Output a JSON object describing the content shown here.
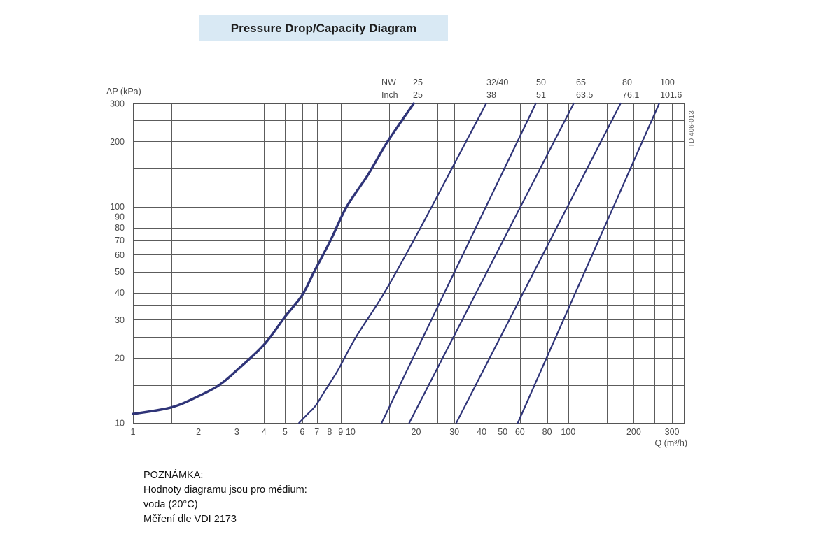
{
  "chart_data": {
    "type": "line",
    "title": "Pressure Drop/Capacity Diagram",
    "xlabel": "Q (m³/h)",
    "ylabel": "ΔP (kPa)",
    "xscale": "log",
    "yscale": "log",
    "xlim": [
      1,
      340
    ],
    "ylim": [
      10,
      300
    ],
    "x_ticks": [
      1,
      2,
      3,
      4,
      5,
      6,
      7,
      8,
      9,
      10,
      20,
      30,
      40,
      50,
      60,
      80,
      100,
      200,
      300
    ],
    "y_ticks": [
      10,
      20,
      30,
      40,
      50,
      60,
      70,
      80,
      90,
      100,
      200,
      300
    ],
    "x_grid": [
      1.5,
      2,
      2.5,
      3,
      4,
      5,
      6,
      7,
      8,
      9,
      10,
      15,
      20,
      25,
      30,
      40,
      50,
      60,
      70,
      80,
      90,
      100,
      150,
      200,
      250,
      300
    ],
    "y_grid": [
      15,
      20,
      25,
      30,
      35,
      40,
      45,
      50,
      60,
      70,
      80,
      90,
      100,
      150,
      200,
      250
    ],
    "grid": true,
    "line_color": "#2f3478",
    "size_labels": {
      "nw": "NW",
      "inch": "Inch"
    },
    "series": [
      {
        "nw": "25",
        "inch": "25",
        "points": [
          [
            1,
            11
          ],
          [
            1.5,
            11.8
          ],
          [
            2,
            13.3
          ],
          [
            2.5,
            15
          ],
          [
            3,
            17.5
          ],
          [
            4,
            23
          ],
          [
            5,
            31
          ],
          [
            6,
            39
          ],
          [
            6.8,
            50
          ],
          [
            8.1,
            70
          ],
          [
            9.6,
            100
          ],
          [
            12,
            140
          ],
          [
            14.8,
            200
          ],
          [
            19.5,
            300
          ]
        ]
      },
      {
        "nw": "32/40",
        "inch": "38",
        "points": [
          [
            5.8,
            10
          ],
          [
            6.3,
            10.9
          ],
          [
            6.9,
            12
          ],
          [
            7.6,
            14
          ],
          [
            8.8,
            17.7
          ],
          [
            10.6,
            25
          ],
          [
            14.3,
            40
          ],
          [
            20.7,
            78
          ],
          [
            30,
            158
          ],
          [
            42,
            300
          ]
        ]
      },
      {
        "nw": "50",
        "inch": "51",
        "points": [
          [
            13.9,
            10
          ],
          [
            71,
            300
          ]
        ]
      },
      {
        "nw": "65",
        "inch": "63.5",
        "points": [
          [
            18.6,
            10
          ],
          [
            106,
            300
          ]
        ]
      },
      {
        "nw": "80",
        "inch": "76.1",
        "points": [
          [
            30.6,
            10
          ],
          [
            174,
            300
          ]
        ]
      },
      {
        "nw": "100",
        "inch": "101.6",
        "points": [
          [
            58.7,
            10
          ],
          [
            262,
            300
          ]
        ]
      }
    ]
  },
  "drawing_code": "TD 406-013",
  "note": {
    "heading": "POZNÁMKA:",
    "lines": [
      "Hodnoty diagramu jsou pro médium:",
      "voda (20°C)",
      "Měření dle VDI 2173"
    ]
  }
}
